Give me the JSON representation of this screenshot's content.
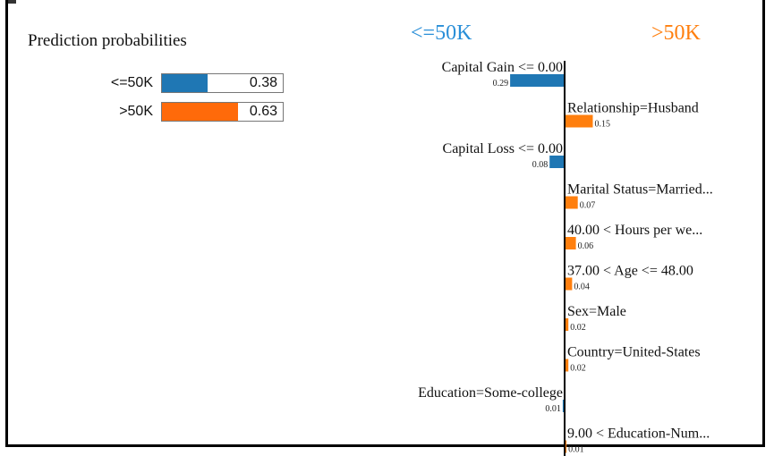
{
  "colors": {
    "neg": "#1f77b4",
    "pos": "#ff7f0e",
    "negHead": "#2a8fd8",
    "posHead": "#ff7f0e"
  },
  "prediction": {
    "title": "Prediction probabilities",
    "rows": [
      {
        "label": "<=50K",
        "value_text": "0.38",
        "value": 0.38,
        "color": "#1f77b4"
      },
      {
        "label": ">50K",
        "value_text": "0.63",
        "value": 0.63,
        "color": "#ff6a0a"
      }
    ]
  },
  "classes": {
    "negative": "<=50K",
    "positive": ">50K"
  },
  "chart_data": {
    "type": "bar",
    "orientation": "horizontal",
    "categories": [
      "Capital Gain <= 0.00",
      "Relationship=Husband",
      "Capital Loss <= 0.00",
      "Marital Status=Married...",
      "40.00 < Hours per we...",
      "37.00 < Age <= 48.00",
      "Sex=Male",
      "Country=United-States",
      "Education=Some-college",
      "9.00 < Education-Num..."
    ],
    "values": [
      -0.29,
      0.15,
      -0.08,
      0.07,
      0.06,
      0.04,
      0.02,
      0.02,
      -0.01,
      0.01
    ],
    "value_labels": [
      "0.29",
      "0.15",
      "0.08",
      "0.07",
      "0.06",
      "0.04",
      "0.02",
      "0.02",
      "0.01",
      "0.01"
    ]
  }
}
